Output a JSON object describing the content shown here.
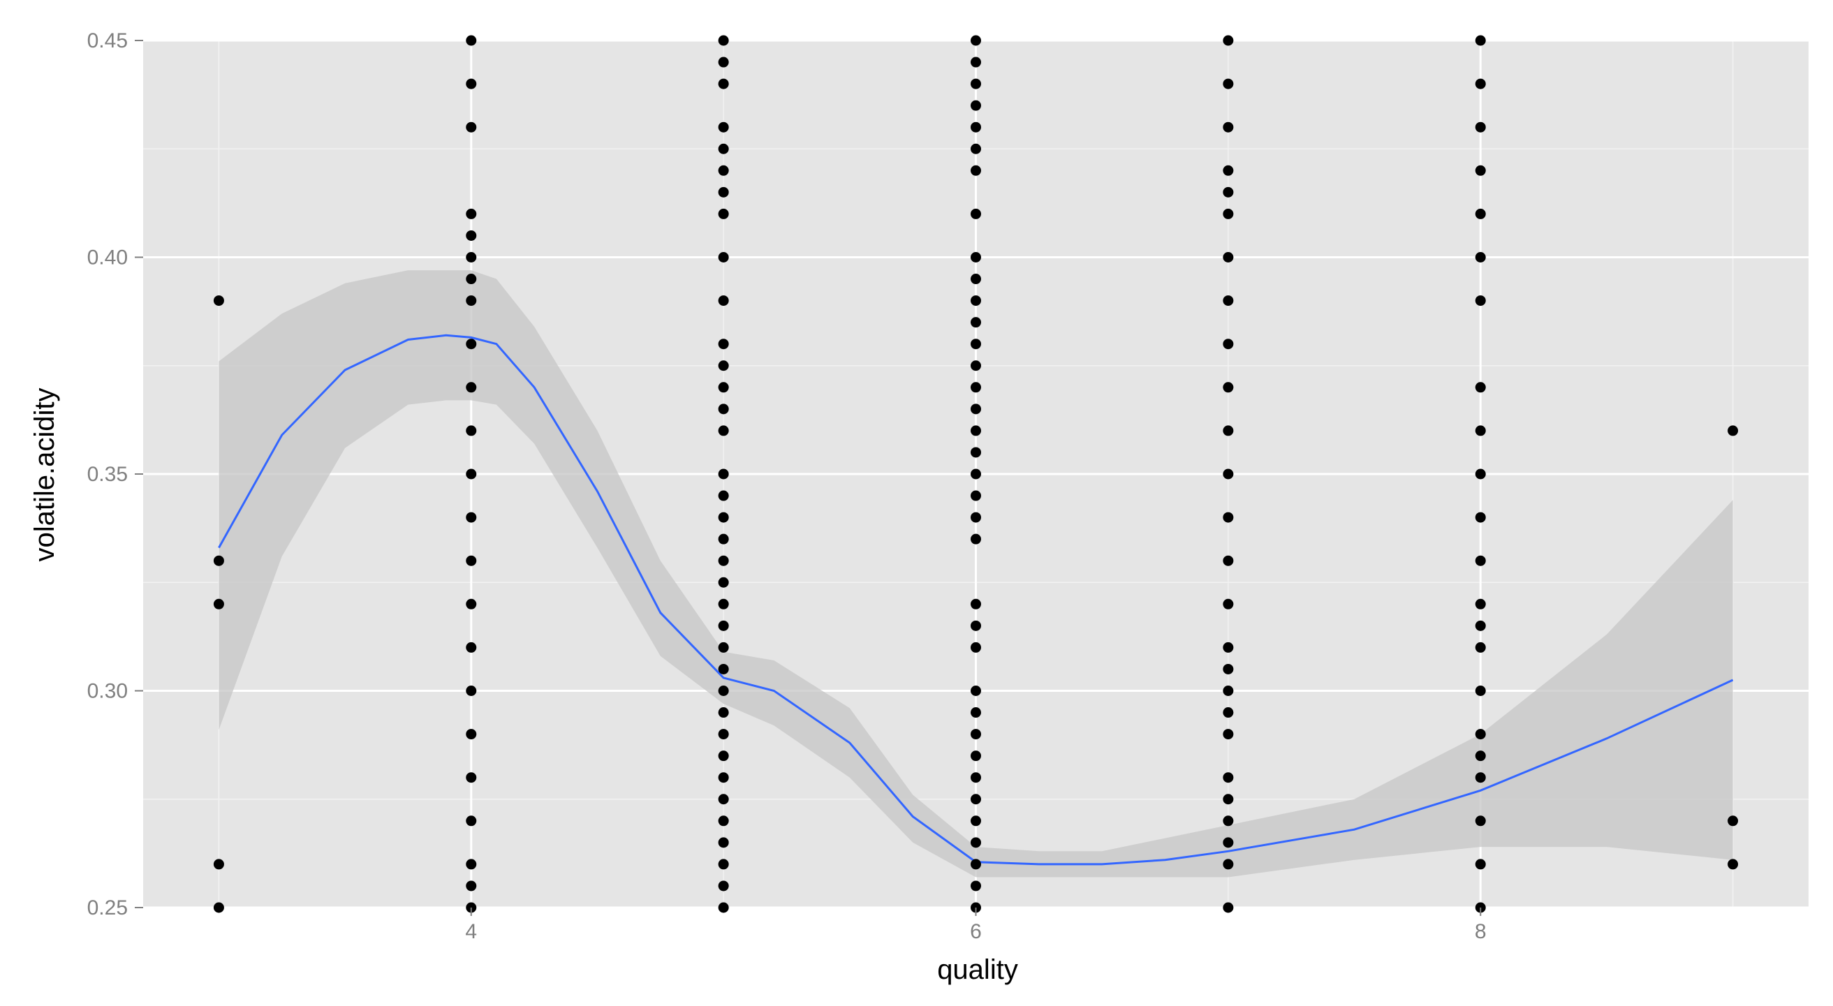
{
  "chart_data": {
    "type": "scatter",
    "title": "",
    "xlabel": "quality",
    "ylabel": "volatile.acidity",
    "xlim": [
      2.7,
      9.3
    ],
    "ylim": [
      0.25,
      0.45
    ],
    "x_ticks": [
      4,
      6,
      8
    ],
    "x_tick_labels": [
      "4",
      "6",
      "8"
    ],
    "y_ticks": [
      0.25,
      0.3,
      0.35,
      0.4,
      0.45
    ],
    "y_tick_labels": [
      "0.25",
      "0.30",
      "0.35",
      "0.40",
      "0.45"
    ],
    "grid": true,
    "colors": {
      "panel": "#e5e5e5",
      "grid_major": "#ffffff",
      "grid_minor": "#f2f2f2",
      "points": "#000000",
      "smooth_line": "#3366ff",
      "confidence_band": "#c6c6c6"
    },
    "points": [
      {
        "x": 3,
        "y": [
          0.25,
          0.26,
          0.32,
          0.33,
          0.39
        ]
      },
      {
        "x": 4,
        "y": [
          0.25,
          0.255,
          0.26,
          0.27,
          0.28,
          0.29,
          0.3,
          0.31,
          0.32,
          0.33,
          0.34,
          0.35,
          0.36,
          0.37,
          0.38,
          0.39,
          0.395,
          0.4,
          0.405,
          0.41,
          0.43,
          0.44,
          0.45
        ]
      },
      {
        "x": 5,
        "y": [
          0.25,
          0.255,
          0.26,
          0.265,
          0.27,
          0.275,
          0.28,
          0.285,
          0.29,
          0.295,
          0.3,
          0.305,
          0.31,
          0.315,
          0.32,
          0.325,
          0.33,
          0.335,
          0.34,
          0.345,
          0.35,
          0.36,
          0.365,
          0.37,
          0.375,
          0.38,
          0.39,
          0.4,
          0.41,
          0.415,
          0.42,
          0.425,
          0.43,
          0.44,
          0.445,
          0.45
        ]
      },
      {
        "x": 6,
        "y": [
          0.25,
          0.255,
          0.26,
          0.265,
          0.27,
          0.275,
          0.28,
          0.285,
          0.29,
          0.295,
          0.3,
          0.31,
          0.315,
          0.32,
          0.335,
          0.34,
          0.345,
          0.35,
          0.355,
          0.36,
          0.365,
          0.37,
          0.375,
          0.38,
          0.385,
          0.39,
          0.395,
          0.4,
          0.41,
          0.42,
          0.425,
          0.43,
          0.435,
          0.44,
          0.445,
          0.45
        ]
      },
      {
        "x": 7,
        "y": [
          0.25,
          0.26,
          0.265,
          0.27,
          0.275,
          0.28,
          0.29,
          0.295,
          0.3,
          0.305,
          0.31,
          0.32,
          0.33,
          0.34,
          0.35,
          0.36,
          0.37,
          0.38,
          0.39,
          0.4,
          0.41,
          0.415,
          0.42,
          0.43,
          0.44,
          0.45
        ]
      },
      {
        "x": 8,
        "y": [
          0.25,
          0.26,
          0.27,
          0.28,
          0.285,
          0.29,
          0.3,
          0.31,
          0.315,
          0.32,
          0.33,
          0.34,
          0.35,
          0.36,
          0.37,
          0.39,
          0.4,
          0.41,
          0.42,
          0.43,
          0.44,
          0.45
        ]
      },
      {
        "x": 9,
        "y": [
          0.26,
          0.27,
          0.36
        ]
      }
    ],
    "smooth": {
      "x": [
        3.0,
        3.25,
        3.5,
        3.75,
        3.9,
        4.0,
        4.1,
        4.25,
        4.5,
        4.75,
        5.0,
        5.2,
        5.5,
        5.75,
        6.0,
        6.25,
        6.5,
        6.75,
        7.0,
        7.5,
        8.0,
        8.5,
        9.0
      ],
      "y": [
        0.333,
        0.359,
        0.374,
        0.381,
        0.382,
        0.3815,
        0.38,
        0.37,
        0.346,
        0.318,
        0.303,
        0.3,
        0.288,
        0.271,
        0.2605,
        0.26,
        0.26,
        0.261,
        0.263,
        0.268,
        0.277,
        0.289,
        0.3025
      ],
      "lower": [
        0.291,
        0.331,
        0.356,
        0.366,
        0.367,
        0.367,
        0.366,
        0.357,
        0.333,
        0.308,
        0.297,
        0.292,
        0.28,
        0.265,
        0.257,
        0.257,
        0.257,
        0.257,
        0.257,
        0.261,
        0.264,
        0.264,
        0.261
      ],
      "upper": [
        0.376,
        0.387,
        0.394,
        0.397,
        0.397,
        0.397,
        0.395,
        0.384,
        0.36,
        0.33,
        0.309,
        0.307,
        0.296,
        0.276,
        0.264,
        0.263,
        0.263,
        0.266,
        0.269,
        0.275,
        0.29,
        0.313,
        0.344
      ]
    }
  }
}
